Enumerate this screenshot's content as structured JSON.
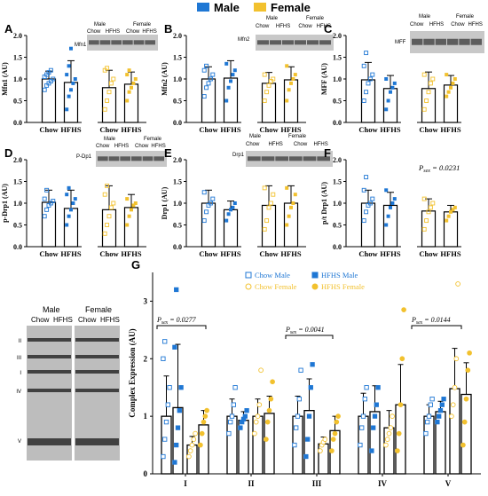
{
  "legend": {
    "items": [
      {
        "label": "Male",
        "color": "#1f77d4"
      },
      {
        "label": "Female",
        "color": "#f2c12e"
      }
    ]
  },
  "colors": {
    "male": "#1f77d4",
    "female": "#f2c12e",
    "bar_edge": "#000000"
  },
  "blot_labels": {
    "male": "Male",
    "female": "Female",
    "chow": "Chow",
    "hfhs": "HFHS"
  },
  "chart_data": [
    {
      "type": "bar",
      "panel": "A",
      "ylabel": "Mfn1 (AU)",
      "blot_name": "Mfn1",
      "categories": [
        "Chow",
        "HFHS",
        "Chow",
        "HFHS"
      ],
      "sex": [
        "Male",
        "Male",
        "Female",
        "Female"
      ],
      "ylim": [
        0,
        2.0
      ],
      "yticks": [
        0.0,
        0.5,
        1.0,
        1.5,
        2.0
      ],
      "values": [
        1.0,
        0.92,
        0.8,
        0.88
      ],
      "errors": [
        0.18,
        0.5,
        0.4,
        0.28
      ],
      "points": [
        [
          0.75,
          0.85,
          0.9,
          0.95,
          1.0,
          1.05,
          1.1,
          1.15,
          1.2
        ],
        [
          0.3,
          0.6,
          0.75,
          0.9,
          1.0,
          1.1,
          1.3,
          1.7
        ],
        [
          0.3,
          0.5,
          0.7,
          0.9,
          1.0,
          1.2,
          1.25
        ],
        [
          0.5,
          0.7,
          0.8,
          0.9,
          1.0,
          1.1,
          1.2
        ]
      ],
      "annotation": ""
    },
    {
      "type": "bar",
      "panel": "B",
      "ylabel": "Mfn2 (AU)",
      "blot_name": "Mfn2",
      "categories": [
        "Chow",
        "HFHS",
        "Chow",
        "HFHS"
      ],
      "sex": [
        "Male",
        "Male",
        "Female",
        "Female"
      ],
      "ylim": [
        0,
        2.0
      ],
      "yticks": [
        0.0,
        0.5,
        1.0,
        1.5,
        2.0
      ],
      "values": [
        1.0,
        1.02,
        0.9,
        0.98
      ],
      "errors": [
        0.28,
        0.4,
        0.25,
        0.3
      ],
      "points": [
        [
          0.6,
          0.8,
          0.9,
          1.0,
          1.1,
          1.2,
          1.3
        ],
        [
          0.5,
          0.8,
          0.95,
          1.1,
          1.2,
          1.35
        ],
        [
          0.5,
          0.7,
          0.85,
          0.95,
          1.0,
          1.1
        ],
        [
          0.5,
          0.75,
          0.9,
          1.0,
          1.1,
          1.3
        ]
      ],
      "annotation": ""
    },
    {
      "type": "bar",
      "panel": "C",
      "ylabel": "MFF (AU)",
      "blot_name": "MFF",
      "categories": [
        "Chow",
        "HFHS",
        "Chow",
        "HFHS"
      ],
      "sex": [
        "Male",
        "Male",
        "Female",
        "Female"
      ],
      "ylim": [
        0,
        2.0
      ],
      "yticks": [
        0.0,
        0.5,
        1.0,
        1.5,
        2.0
      ],
      "values": [
        0.98,
        0.78,
        0.78,
        0.86
      ],
      "errors": [
        0.4,
        0.3,
        0.38,
        0.22
      ],
      "points": [
        [
          0.5,
          0.7,
          0.9,
          1.0,
          1.1,
          1.3,
          1.6
        ],
        [
          0.3,
          0.5,
          0.7,
          0.8,
          0.9,
          1.0
        ],
        [
          0.3,
          0.5,
          0.7,
          0.9,
          1.0,
          1.1
        ],
        [
          0.6,
          0.7,
          0.8,
          0.9,
          1.0,
          1.1
        ]
      ],
      "annotation": ""
    },
    {
      "type": "bar",
      "panel": "D",
      "ylabel": "p-Drp1 (AU)",
      "blot_name": "P-Dp1",
      "categories": [
        "Chow",
        "HFHS",
        "Chow",
        "HFHS"
      ],
      "sex": [
        "Male",
        "Male",
        "Female",
        "Female"
      ],
      "ylim": [
        0,
        2.0
      ],
      "yticks": [
        0.0,
        0.5,
        1.0,
        1.5,
        2.0
      ],
      "values": [
        1.02,
        0.88,
        0.85,
        0.9
      ],
      "errors": [
        0.28,
        0.42,
        0.55,
        0.3
      ],
      "points": [
        [
          0.7,
          0.85,
          0.95,
          1.0,
          1.05,
          1.1,
          1.3
        ],
        [
          0.5,
          0.7,
          0.85,
          1.0,
          1.1,
          1.2,
          1.35
        ],
        [
          0.3,
          0.5,
          0.7,
          0.9,
          1.0,
          1.2,
          1.4,
          2.05
        ],
        [
          0.5,
          0.7,
          0.85,
          0.95,
          1.0,
          1.1
        ]
      ],
      "annotation": ""
    },
    {
      "type": "bar",
      "panel": "E",
      "ylabel": "Drp1 (AU)",
      "blot_name": "Drp1",
      "categories": [
        "Chow",
        "HFHS",
        "Chow",
        "HFHS"
      ],
      "sex": [
        "Male",
        "Male",
        "Female",
        "Female"
      ],
      "ylim": [
        0,
        2.0
      ],
      "yticks": [
        0.0,
        0.5,
        1.0,
        1.5,
        2.0
      ],
      "values": [
        1.0,
        0.85,
        0.95,
        1.0
      ],
      "errors": [
        0.3,
        0.2,
        0.45,
        0.4
      ],
      "points": [
        [
          0.6,
          0.8,
          0.95,
          1.0,
          1.1,
          1.25
        ],
        [
          0.6,
          0.75,
          0.85,
          0.9,
          1.0
        ],
        [
          0.4,
          0.6,
          0.9,
          1.0,
          1.2,
          1.35
        ],
        [
          0.5,
          0.7,
          0.9,
          1.0,
          1.2,
          1.35
        ]
      ],
      "annotation": ""
    },
    {
      "type": "bar",
      "panel": "F",
      "ylabel": "p/t Drp1 (AU)",
      "blot_name": "",
      "categories": [
        "Chow",
        "HFHS",
        "Chow",
        "HFHS"
      ],
      "sex": [
        "Male",
        "Male",
        "Female",
        "Female"
      ],
      "ylim": [
        0,
        2.0
      ],
      "yticks": [
        0.0,
        0.5,
        1.0,
        1.5,
        2.0
      ],
      "values": [
        1.0,
        0.95,
        0.82,
        0.8
      ],
      "errors": [
        0.3,
        0.3,
        0.28,
        0.15
      ],
      "points": [
        [
          0.6,
          0.8,
          0.95,
          1.0,
          1.1,
          1.3,
          1.6
        ],
        [
          0.5,
          0.7,
          0.9,
          1.0,
          1.1,
          1.3
        ],
        [
          0.4,
          0.6,
          0.8,
          0.9,
          1.0,
          1.1
        ],
        [
          0.6,
          0.7,
          0.8,
          0.85,
          0.9
        ]
      ],
      "annotation": "Psex = 0.0231"
    },
    {
      "type": "bar",
      "panel": "G",
      "ylabel": "Complex Expression (AU)",
      "categories": [
        "I",
        "II",
        "III",
        "IV",
        "V"
      ],
      "ylim": [
        0,
        3.5
      ],
      "yticks": [
        0,
        1,
        2,
        3
      ],
      "series": [
        {
          "name": "Chow Male",
          "sex": "Male",
          "filled": false,
          "values": [
            1.0,
            1.0,
            1.0,
            1.0,
            1.0
          ],
          "errors": [
            0.7,
            0.3,
            0.35,
            0.4,
            0.2
          ]
        },
        {
          "name": "HFHS Male",
          "sex": "Male",
          "filled": true,
          "values": [
            1.15,
            0.93,
            1.1,
            1.08,
            1.08
          ],
          "errors": [
            1.1,
            0.15,
            0.55,
            0.45,
            0.18
          ]
        },
        {
          "name": "Chow Female",
          "sex": "Female",
          "filled": false,
          "values": [
            0.5,
            1.0,
            0.52,
            0.8,
            1.48
          ],
          "errors": [
            0.15,
            0.3,
            0.12,
            0.3,
            0.7
          ]
        },
        {
          "name": "HFHS Female",
          "sex": "Female",
          "filled": true,
          "values": [
            0.85,
            1.05,
            0.75,
            1.2,
            1.38
          ],
          "errors": [
            0.25,
            0.3,
            0.25,
            0.7,
            0.55
          ]
        }
      ],
      "points": [
        [
          [
            0.3,
            0.6,
            0.9,
            1.2,
            1.5,
            2.0,
            2.3
          ],
          [
            0.2,
            0.5,
            0.8,
            1.1,
            1.5,
            2.2,
            3.2
          ],
          [
            0.3,
            0.4,
            0.5,
            0.6,
            0.7
          ],
          [
            0.5,
            0.7,
            0.9,
            1.0,
            1.1
          ]
        ],
        [
          [
            0.7,
            0.9,
            1.0,
            1.2,
            1.5
          ],
          [
            0.8,
            0.9,
            0.95,
            1.0,
            1.1
          ],
          [
            0.7,
            0.9,
            1.0,
            1.2,
            1.8
          ],
          [
            0.6,
            0.9,
            1.1,
            1.3,
            1.6
          ]
        ],
        [
          [
            0.5,
            0.8,
            1.0,
            1.3,
            1.8
          ],
          [
            0.3,
            0.6,
            1.0,
            1.5,
            1.9
          ],
          [
            0.4,
            0.5,
            0.55,
            0.6
          ],
          [
            0.4,
            0.6,
            0.7,
            0.9,
            1.0
          ]
        ],
        [
          [
            0.5,
            0.8,
            1.0,
            1.3,
            1.5
          ],
          [
            0.4,
            0.8,
            1.0,
            1.2,
            1.5
          ],
          [
            0.5,
            0.6,
            0.7,
            0.8,
            1.0
          ],
          [
            0.4,
            0.7,
            1.2,
            2.0,
            2.85
          ]
        ],
        [
          [
            0.7,
            0.9,
            1.0,
            1.2,
            1.3
          ],
          [
            0.9,
            1.0,
            1.1,
            1.2,
            1.3
          ],
          [
            1.0,
            1.2,
            1.5,
            2.0,
            3.3
          ],
          [
            0.5,
            0.9,
            1.3,
            1.8,
            2.1
          ]
        ]
      ],
      "annotations": [
        {
          "text": "Psex = 0.0277",
          "over": [
            "I"
          ]
        },
        {
          "text": "Psex = 0.0041",
          "over": [
            "III"
          ]
        },
        {
          "text": "Psex = 0.0144",
          "over": [
            "V"
          ]
        }
      ]
    }
  ],
  "blot_complex_labels": [
    "II",
    "III",
    "I",
    "IV",
    "V"
  ]
}
